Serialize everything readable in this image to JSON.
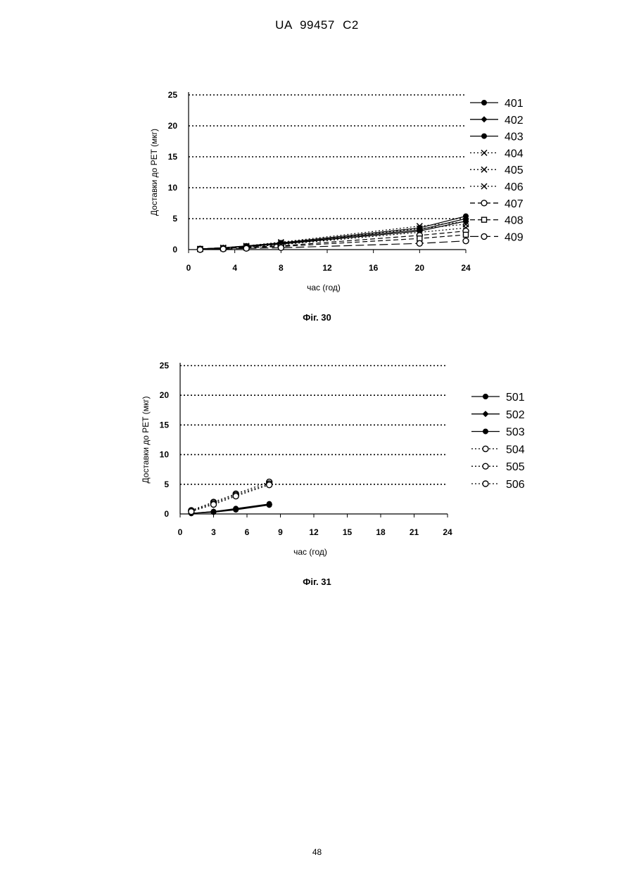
{
  "header": {
    "text": "UA   99457   C2"
  },
  "footer": {
    "page_number": "48"
  },
  "chart_data": [
    {
      "type": "line",
      "caption": "Фіг. 30",
      "xlabel": "час (год)",
      "ylabel": "Доставки до PET (мкг)",
      "xlim": [
        0,
        24
      ],
      "ylim": [
        0,
        25
      ],
      "xticks": [
        0,
        4,
        8,
        12,
        16,
        20,
        24
      ],
      "yticks": [
        0,
        5,
        10,
        15,
        20,
        25
      ],
      "grid": "horizontal dotted",
      "legend_position": "right",
      "series": [
        {
          "name": "401",
          "marker": "filled-circle",
          "dash": "solid",
          "x": [
            1,
            3,
            5,
            8,
            20,
            24
          ],
          "y": [
            0.1,
            0.3,
            0.6,
            1.1,
            3.5,
            5.4
          ]
        },
        {
          "name": "402",
          "marker": "filled-diamond",
          "dash": "solid",
          "x": [
            1,
            3,
            5,
            8,
            20,
            24
          ],
          "y": [
            0.1,
            0.3,
            0.5,
            1.0,
            3.2,
            5.0
          ]
        },
        {
          "name": "403",
          "marker": "filled-circle",
          "dash": "solid",
          "x": [
            1,
            3,
            5,
            8,
            20,
            24
          ],
          "y": [
            0.1,
            0.3,
            0.5,
            0.9,
            3.0,
            4.6
          ]
        },
        {
          "name": "404",
          "marker": "x",
          "dash": "dotted",
          "x": [
            1,
            3,
            5,
            8,
            20,
            24
          ],
          "y": [
            0.1,
            0.3,
            0.6,
            1.2,
            3.8,
            4.5
          ]
        },
        {
          "name": "405",
          "marker": "x",
          "dash": "dotted",
          "x": [
            1,
            3,
            5,
            8,
            20,
            24
          ],
          "y": [
            0.1,
            0.3,
            0.5,
            1.0,
            3.4,
            4.1
          ]
        },
        {
          "name": "406",
          "marker": "x",
          "dash": "dotted",
          "x": [
            1,
            3,
            5,
            8,
            20,
            24
          ],
          "y": [
            0.1,
            0.2,
            0.4,
            0.8,
            2.8,
            3.5
          ]
        },
        {
          "name": "407",
          "marker": "open-circle",
          "dash": "dashed",
          "x": [
            1,
            3,
            5,
            8,
            20,
            24
          ],
          "y": [
            0.1,
            0.2,
            0.4,
            0.6,
            2.3,
            3.0
          ]
        },
        {
          "name": "408",
          "marker": "open-square",
          "dash": "dashed",
          "x": [
            1,
            3,
            5,
            8,
            20,
            24
          ],
          "y": [
            0.1,
            0.2,
            0.3,
            0.5,
            1.8,
            2.4
          ]
        },
        {
          "name": "409",
          "marker": "open-circle",
          "dash": "longdash",
          "x": [
            1,
            3,
            5,
            8,
            20,
            24
          ],
          "y": [
            0.0,
            0.1,
            0.2,
            0.3,
            1.0,
            1.4
          ]
        }
      ]
    },
    {
      "type": "line",
      "caption": "Фіг. 31",
      "xlabel": "час (год)",
      "ylabel": "Доставки до PET (мкг)",
      "xlim": [
        0,
        24
      ],
      "ylim": [
        0,
        25
      ],
      "xticks": [
        0,
        3,
        6,
        9,
        12,
        15,
        18,
        21,
        24
      ],
      "yticks": [
        0,
        5,
        10,
        15,
        20,
        25
      ],
      "grid": "horizontal dotted",
      "legend_position": "right",
      "series": [
        {
          "name": "501",
          "marker": "filled-circle",
          "dash": "solid",
          "x": [
            1,
            3,
            5,
            8
          ],
          "y": [
            0.1,
            0.4,
            0.9,
            1.7
          ]
        },
        {
          "name": "502",
          "marker": "filled-diamond",
          "dash": "solid",
          "x": [
            1,
            3,
            5,
            8
          ],
          "y": [
            0.1,
            0.4,
            0.8,
            1.6
          ]
        },
        {
          "name": "503",
          "marker": "filled-circle",
          "dash": "solid",
          "x": [
            1,
            3,
            5,
            8
          ],
          "y": [
            0.1,
            0.3,
            0.7,
            1.5
          ]
        },
        {
          "name": "504",
          "marker": "open-circle",
          "dash": "dotted",
          "x": [
            1,
            3,
            5,
            8
          ],
          "y": [
            0.6,
            2.0,
            3.4,
            5.4
          ]
        },
        {
          "name": "505",
          "marker": "open-circle",
          "dash": "dotted",
          "x": [
            1,
            3,
            5,
            8
          ],
          "y": [
            0.5,
            1.8,
            3.2,
            5.1
          ]
        },
        {
          "name": "506",
          "marker": "open-circle",
          "dash": "dotted",
          "x": [
            1,
            3,
            5,
            8
          ],
          "y": [
            0.4,
            1.6,
            3.0,
            4.9
          ]
        }
      ]
    }
  ]
}
